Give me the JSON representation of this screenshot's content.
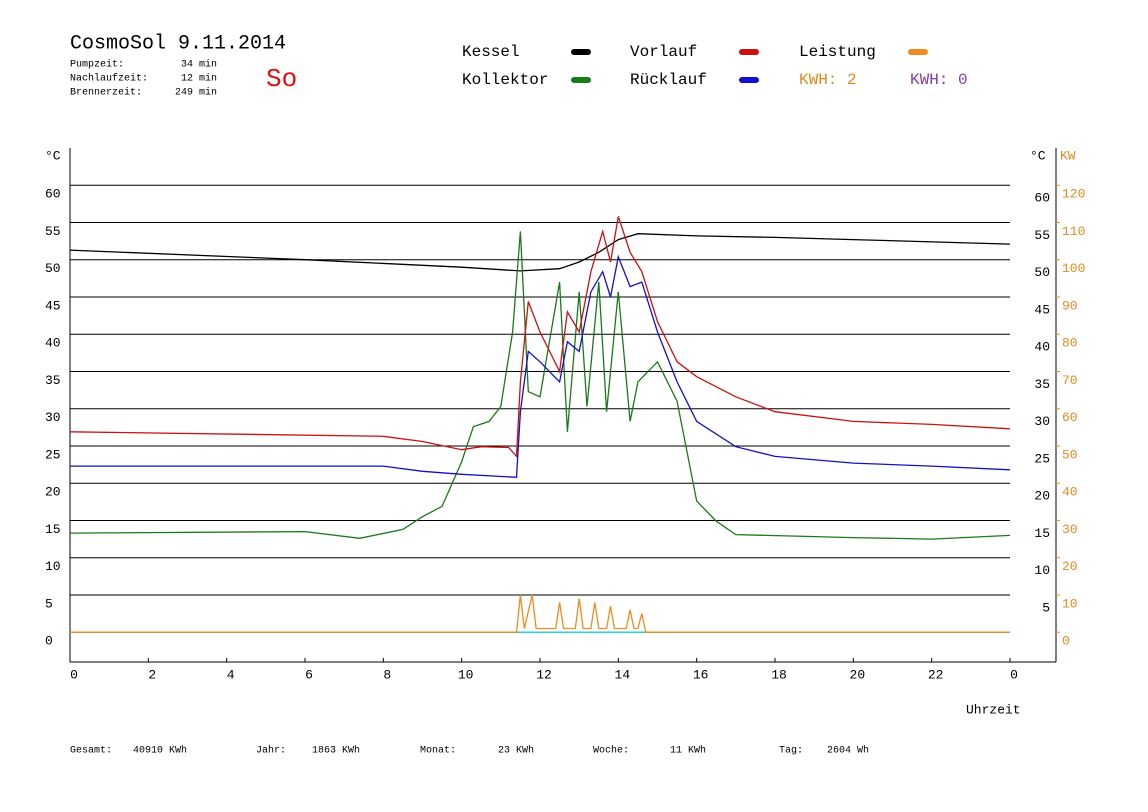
{
  "chart_data": {
    "type": "line",
    "title": "CosmoSol 9.11.2014",
    "day": "So",
    "stats": [
      [
        "Pumpzeit:",
        "34 min"
      ],
      [
        "Nachlaufzeit:",
        "12 min"
      ],
      [
        "Brennerzeit:",
        "249 min"
      ]
    ],
    "totals": [
      [
        "Gesamt:",
        "40910 KWh"
      ],
      [
        "Jahr:",
        "1863 KWh"
      ],
      [
        "Monat:",
        "23 KWh"
      ],
      [
        "Woche:",
        "11 KWh"
      ],
      [
        "Tag:",
        "2604 Wh"
      ]
    ],
    "kwh_labels": [
      {
        "text": "KWH: 2",
        "color": "#e08a1e"
      },
      {
        "text": "KWH: 0",
        "color": "#8a3aa0"
      }
    ],
    "x_label": "Uhrzeit",
    "y_label": "°C",
    "y2_labels": [
      "°C",
      "KW"
    ],
    "xlim": [
      0,
      24
    ],
    "xticks": [
      0,
      2,
      4,
      6,
      8,
      10,
      12,
      14,
      16,
      18,
      20,
      22,
      {
        "value": 24,
        "label": "0"
      }
    ],
    "ylim": [
      -4,
      65
    ],
    "yticks": [
      0,
      5,
      10,
      15,
      20,
      25,
      30,
      35,
      40,
      45,
      50,
      55,
      60
    ],
    "y2lim": [
      -8,
      130
    ],
    "y2ticks": [
      0,
      10,
      20,
      30,
      40,
      50,
      60,
      70,
      80,
      90,
      100,
      110,
      120
    ],
    "grid": true,
    "series": [
      {
        "name": "Kessel",
        "color": "#000000",
        "x": [
          0,
          6,
          10,
          11.5,
          12.5,
          13,
          13.5,
          14,
          14.5,
          16,
          18,
          20,
          24
        ],
        "values": [
          51.3,
          50,
          49,
          48.5,
          48.8,
          49.7,
          51,
          52.7,
          53.5,
          53.2,
          53,
          52.7,
          52.1
        ]
      },
      {
        "name": "Kollektor",
        "color": "#1a7a1a",
        "x": [
          0,
          6,
          7.4,
          8.5,
          9,
          9.5,
          10,
          10.3,
          10.7,
          11,
          11.3,
          11.5,
          11.7,
          12,
          12.5,
          12.7,
          13,
          13.2,
          13.5,
          13.7,
          14,
          14.3,
          14.5,
          15,
          15.5,
          16,
          16.5,
          17,
          20,
          22,
          24
        ],
        "values": [
          13.3,
          13.5,
          12.6,
          13.8,
          15.5,
          16.9,
          22.9,
          27.6,
          28.3,
          30.3,
          40.3,
          53.8,
          32.3,
          31.6,
          47,
          26.9,
          45.7,
          30.3,
          47,
          29.6,
          45.7,
          28.3,
          33.6,
          36.3,
          31,
          17.6,
          14.9,
          13.1,
          12.7,
          12.5,
          13
        ]
      },
      {
        "name": "Vorlauf",
        "color": "#cc1111",
        "x": [
          0,
          8,
          9,
          10,
          10.5,
          11.2,
          11.4,
          11.5,
          11.7,
          12,
          12.5,
          12.7,
          13,
          13.3,
          13.6,
          13.8,
          14,
          14.3,
          14.6,
          15,
          15.5,
          16,
          17,
          18,
          20,
          22,
          24
        ],
        "values": [
          26.9,
          26.3,
          25.6,
          24.5,
          24.9,
          24.8,
          23.6,
          33.6,
          44.4,
          40.3,
          35,
          43,
          40.3,
          48.4,
          53.8,
          49.7,
          55.8,
          51,
          48.4,
          41.7,
          36.3,
          34.3,
          31.6,
          29.6,
          28.3,
          27.9,
          27.3
        ]
      },
      {
        "name": "Rücklauf",
        "color": "#1111cc",
        "x": [
          0,
          8,
          9,
          10,
          11.4,
          11.5,
          11.7,
          12,
          12.5,
          12.7,
          13,
          13.3,
          13.6,
          13.8,
          14,
          14.3,
          14.6,
          15,
          15.5,
          16,
          17,
          18,
          20,
          22,
          24
        ],
        "values": [
          22.3,
          22.3,
          21.6,
          21.2,
          20.8,
          29.6,
          37.7,
          36.3,
          33.6,
          39,
          37.7,
          45.7,
          48.4,
          45,
          50.4,
          46.4,
          47,
          40.3,
          33.6,
          28.3,
          24.9,
          23.6,
          22.7,
          22.3,
          21.8
        ]
      },
      {
        "name": "Leistung",
        "color": "#f08c1e",
        "axis": "y2",
        "x": [
          0,
          11.4,
          11.5,
          11.6,
          11.8,
          11.9,
          12.4,
          12.5,
          12.6,
          12.9,
          13,
          13.1,
          13.3,
          13.4,
          13.5,
          13.7,
          13.8,
          13.9,
          14.2,
          14.3,
          14.4,
          14.5,
          14.6,
          14.7,
          24
        ],
        "values": [
          0,
          0,
          10,
          1,
          10,
          1,
          1,
          8,
          1,
          1,
          9,
          1,
          1,
          8,
          1,
          1,
          7,
          1,
          1,
          6,
          1,
          1,
          5,
          0,
          0
        ]
      }
    ]
  }
}
